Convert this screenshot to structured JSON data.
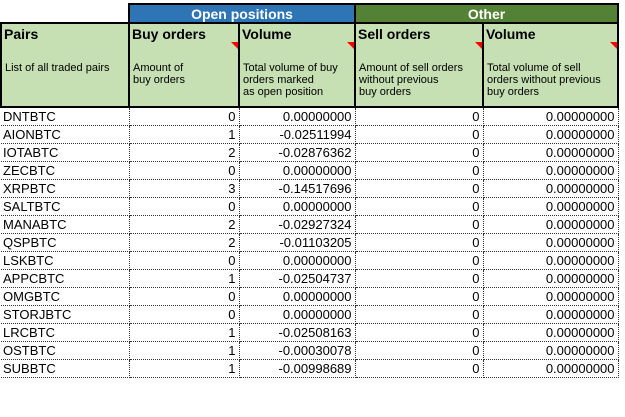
{
  "colors": {
    "open_positions_header": "#2e75b6",
    "other_header": "#538135",
    "column_header_bg": "#c6e0b4",
    "comment_indicator": "#ff0000"
  },
  "groups": [
    {
      "label": "Open positions"
    },
    {
      "label": "Other"
    }
  ],
  "columns": [
    {
      "title": "Pairs",
      "description": "List of all traded pairs",
      "has_comment": false
    },
    {
      "title": "Buy orders",
      "description": "Amount of\nbuy orders",
      "has_comment": true
    },
    {
      "title": "Volume",
      "description": "Total volume of buy\norders marked\nas open position",
      "has_comment": true
    },
    {
      "title": "Sell orders",
      "description": "Amount of sell orders\nwithout previous\nbuy orders",
      "has_comment": true
    },
    {
      "title": "Volume",
      "description": "Total volume of sell\norders without previous\nbuy orders",
      "has_comment": true
    }
  ],
  "rows": [
    {
      "pair": "DNTBTC",
      "buy_orders": "0",
      "buy_volume": "0.00000000",
      "sell_orders": "0",
      "sell_volume": "0.00000000"
    },
    {
      "pair": "AIONBTC",
      "buy_orders": "1",
      "buy_volume": "-0.02511994",
      "sell_orders": "0",
      "sell_volume": "0.00000000"
    },
    {
      "pair": "IOTABTC",
      "buy_orders": "2",
      "buy_volume": "-0.02876362",
      "sell_orders": "0",
      "sell_volume": "0.00000000"
    },
    {
      "pair": "ZECBTC",
      "buy_orders": "0",
      "buy_volume": "0.00000000",
      "sell_orders": "0",
      "sell_volume": "0.00000000"
    },
    {
      "pair": "XRPBTC",
      "buy_orders": "3",
      "buy_volume": "-0.14517696",
      "sell_orders": "0",
      "sell_volume": "0.00000000"
    },
    {
      "pair": "SALTBTC",
      "buy_orders": "0",
      "buy_volume": "0.00000000",
      "sell_orders": "0",
      "sell_volume": "0.00000000"
    },
    {
      "pair": "MANABTC",
      "buy_orders": "2",
      "buy_volume": "-0.02927324",
      "sell_orders": "0",
      "sell_volume": "0.00000000"
    },
    {
      "pair": "QSPBTC",
      "buy_orders": "2",
      "buy_volume": "-0.01103205",
      "sell_orders": "0",
      "sell_volume": "0.00000000"
    },
    {
      "pair": "LSKBTC",
      "buy_orders": "0",
      "buy_volume": "0.00000000",
      "sell_orders": "0",
      "sell_volume": "0.00000000"
    },
    {
      "pair": "APPCBTC",
      "buy_orders": "1",
      "buy_volume": "-0.02504737",
      "sell_orders": "0",
      "sell_volume": "0.00000000"
    },
    {
      "pair": "OMGBTC",
      "buy_orders": "0",
      "buy_volume": "0.00000000",
      "sell_orders": "0",
      "sell_volume": "0.00000000"
    },
    {
      "pair": "STORJBTC",
      "buy_orders": "0",
      "buy_volume": "0.00000000",
      "sell_orders": "0",
      "sell_volume": "0.00000000"
    },
    {
      "pair": "LRCBTC",
      "buy_orders": "1",
      "buy_volume": "-0.02508163",
      "sell_orders": "0",
      "sell_volume": "0.00000000"
    },
    {
      "pair": "OSTBTC",
      "buy_orders": "1",
      "buy_volume": "-0.00030078",
      "sell_orders": "0",
      "sell_volume": "0.00000000"
    },
    {
      "pair": "SUBBTC",
      "buy_orders": "1",
      "buy_volume": "-0.00998689",
      "sell_orders": "0",
      "sell_volume": "0.00000000"
    }
  ]
}
